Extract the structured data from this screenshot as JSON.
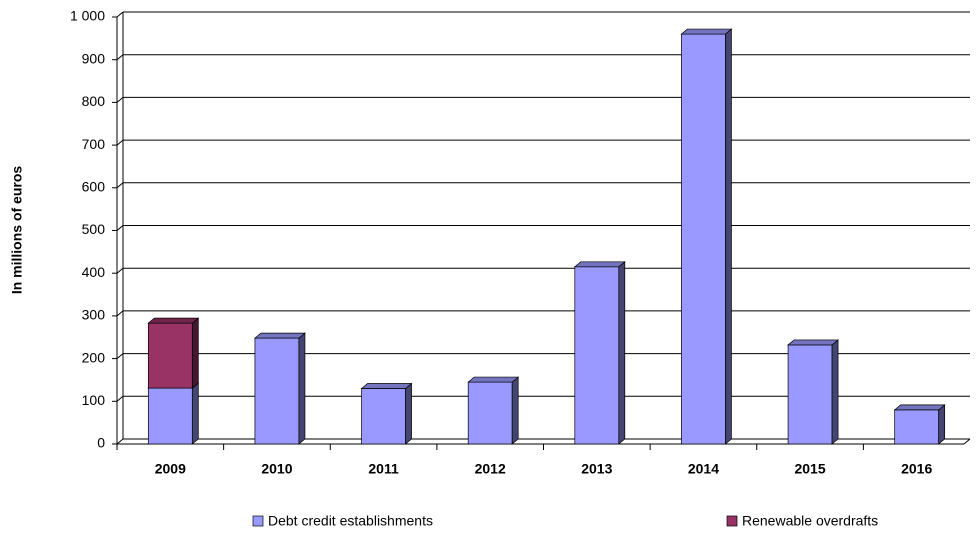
{
  "chart_data": {
    "type": "bar",
    "stacked": true,
    "y_label": "In millions of euros",
    "categories": [
      "2009",
      "2010",
      "2011",
      "2012",
      "2013",
      "2014",
      "2015",
      "2016"
    ],
    "series": [
      {
        "name": "Debt credit establishments",
        "color": "#9999ff",
        "values": [
          131,
          248,
          130,
          145,
          415,
          960,
          232,
          80
        ]
      },
      {
        "name": "Renewable overdrafts",
        "color": "#993366",
        "values": [
          152,
          0,
          0,
          0,
          0,
          0,
          0,
          0
        ]
      }
    ],
    "ylim": [
      0,
      1000
    ],
    "yticks": [
      0,
      100,
      200,
      300,
      400,
      500,
      600,
      700,
      800,
      900,
      {
        "value": 1000,
        "label": "1 000"
      }
    ],
    "grid": true
  }
}
